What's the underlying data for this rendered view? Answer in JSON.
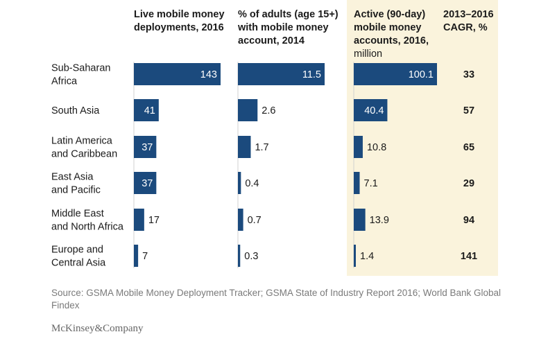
{
  "chart_data": {
    "type": "table",
    "categories": [
      [
        "Sub-Saharan",
        "Africa"
      ],
      [
        "South Asia"
      ],
      [
        "Latin America",
        "and Caribbean"
      ],
      [
        "East Asia",
        "and Pacific"
      ],
      [
        "Middle East",
        "and North Africa"
      ],
      [
        "Europe and",
        "Central Asia"
      ]
    ],
    "series": [
      {
        "name": [
          "Live mobile money",
          "deployments, 2016"
        ],
        "values": [
          143,
          41,
          37,
          37,
          17,
          7
        ],
        "labels": [
          "143",
          "41",
          "37",
          "37",
          "17",
          "7"
        ],
        "max": 143,
        "highlight": false
      },
      {
        "name": [
          "% of adults (age 15+)",
          "with mobile money",
          "account, 2014"
        ],
        "values": [
          11.5,
          2.6,
          1.7,
          0.4,
          0.7,
          0.3
        ],
        "labels": [
          "11.5",
          "2.6",
          "1.7",
          "0.4",
          "0.7",
          "0.3"
        ],
        "max": 11.5,
        "highlight": false
      },
      {
        "name": [
          "Active (90-day)",
          "mobile money",
          "accounts, 2016,"
        ],
        "unit": "million",
        "values": [
          100.1,
          40.4,
          10.8,
          7.1,
          13.9,
          1.4
        ],
        "labels": [
          "100.1",
          "40.4",
          "10.8",
          "7.1",
          "13.9",
          "1.4"
        ],
        "max": 100.1,
        "highlight": true
      }
    ],
    "cagr": {
      "name": [
        "2013–2016",
        "CAGR, %"
      ],
      "values": [
        33,
        57,
        65,
        29,
        94,
        141
      ],
      "labels": [
        "33",
        "57",
        "65",
        "29",
        "94",
        "141"
      ]
    }
  },
  "colors": {
    "bar": "#1b4a7d",
    "highlight_bg": "#faf3dc",
    "label_inside": "#ffffff",
    "label_outside": "#1a1a1a"
  },
  "footer": {
    "source": "Source: GSMA Mobile Money Deployment Tracker; GSMA State of Industry Report 2016; World Bank Global Findex",
    "logo": "McKinsey&Company"
  }
}
